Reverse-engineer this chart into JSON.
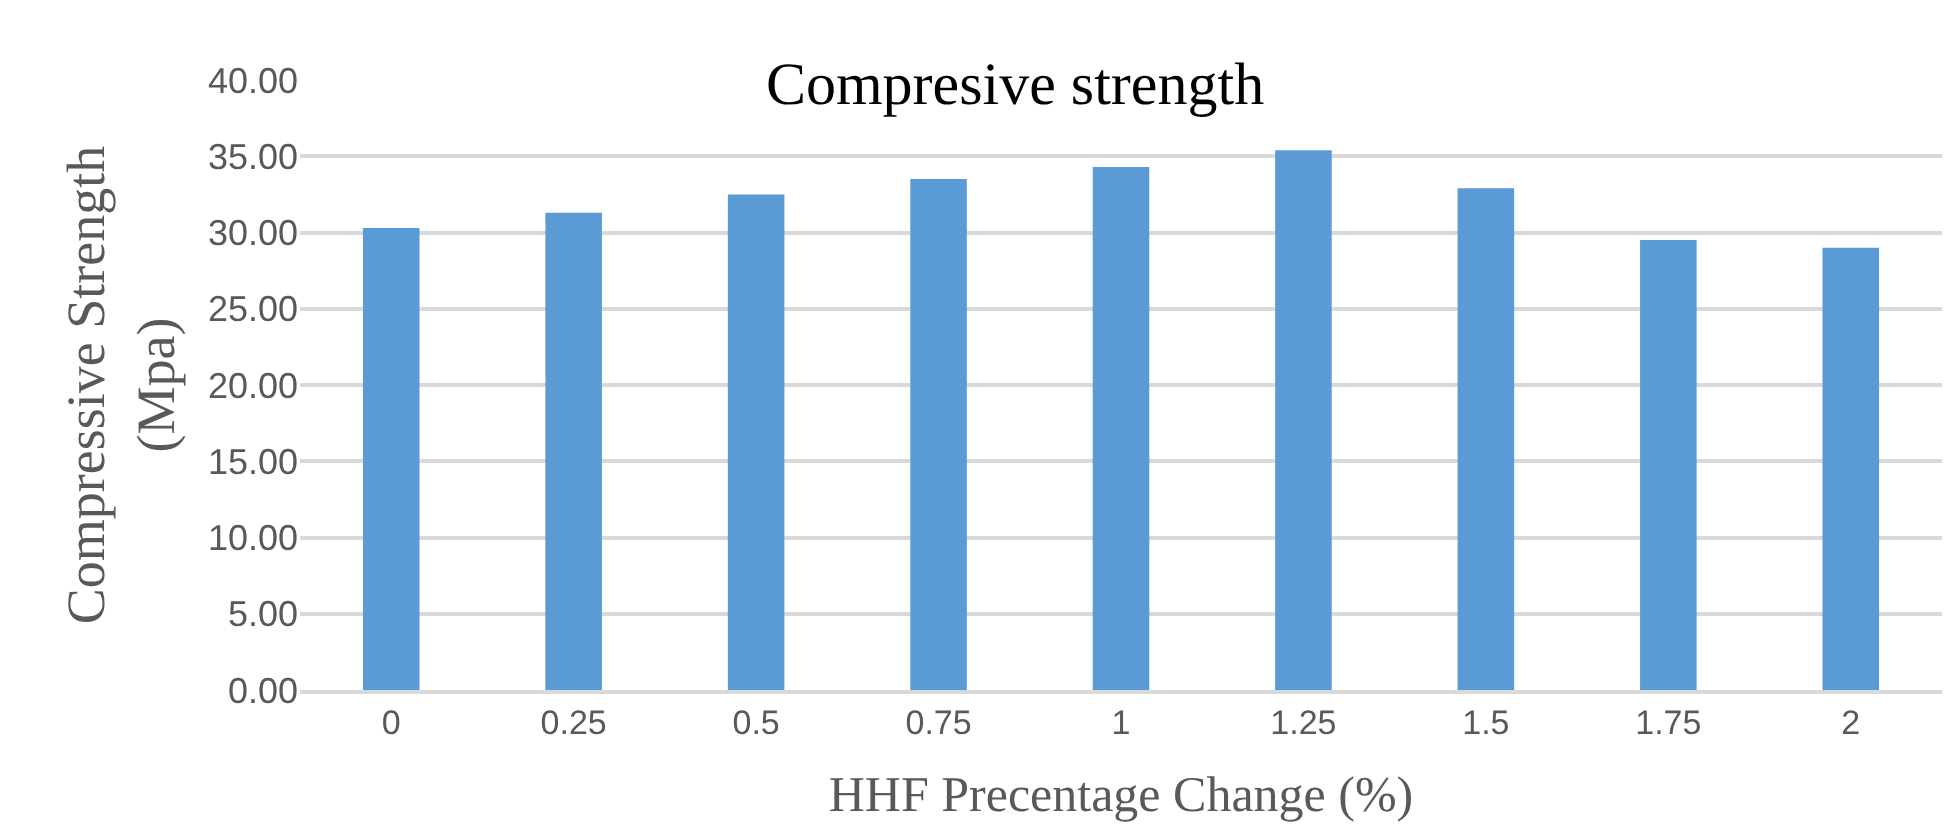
{
  "chart_data": {
    "type": "bar",
    "title": "Compresive strength",
    "xlabel": "HHF Precentage Change (%)",
    "ylabel": "Compressive Strength (Mpa)",
    "categories": [
      "0",
      "0.25",
      "0.5",
      "0.75",
      "1",
      "1.25",
      "1.5",
      "1.75",
      "2"
    ],
    "values": [
      30.3,
      31.3,
      32.5,
      33.5,
      34.3,
      35.4,
      32.9,
      29.5,
      29.0
    ],
    "color": "#5b9bd5",
    "ylim": [
      0,
      40
    ],
    "yticks": [
      {
        "value": 0,
        "label": "0.00"
      },
      {
        "value": 5,
        "label": "5.00"
      },
      {
        "value": 10,
        "label": "10.00"
      },
      {
        "value": 15,
        "label": "15.00"
      },
      {
        "value": 20,
        "label": "20.00"
      },
      {
        "value": 25,
        "label": "25.00"
      },
      {
        "value": 30,
        "label": "30.00"
      },
      {
        "value": 35,
        "label": "35.00"
      },
      {
        "value": 40,
        "label": "40.00"
      }
    ],
    "grid": "y"
  }
}
